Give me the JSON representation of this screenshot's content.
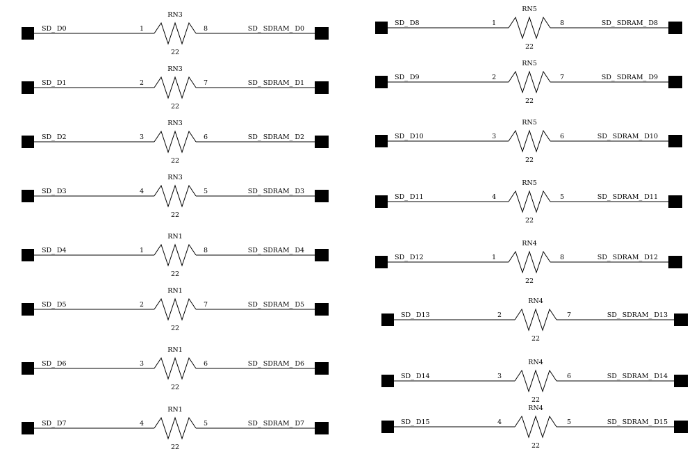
{
  "resistors": [
    {
      "ref": "RN3",
      "value": "22",
      "in_net": "SD_ D0",
      "out_net": "SD_ SDRAM_ D0",
      "pin_in": "1",
      "pin_out": "8"
    },
    {
      "ref": "RN3",
      "value": "22",
      "in_net": "SD_ D1",
      "out_net": "SD_ SDRAM_ D1",
      "pin_in": "2",
      "pin_out": "7"
    },
    {
      "ref": "RN3",
      "value": "22",
      "in_net": "SD_ D2",
      "out_net": "SD_ SDRAM_ D2",
      "pin_in": "3",
      "pin_out": "6"
    },
    {
      "ref": "RN3",
      "value": "22",
      "in_net": "SD_ D3",
      "out_net": "SD_ SDRAM_ D3",
      "pin_in": "4",
      "pin_out": "5"
    },
    {
      "ref": "RN1",
      "value": "22",
      "in_net": "SD_ D4",
      "out_net": "SD_ SDRAM_ D4",
      "pin_in": "1",
      "pin_out": "8"
    },
    {
      "ref": "RN1",
      "value": "22",
      "in_net": "SD_ D5",
      "out_net": "SD_ SDRAM_ D5",
      "pin_in": "2",
      "pin_out": "7"
    },
    {
      "ref": "RN1",
      "value": "22",
      "in_net": "SD_ D6",
      "out_net": "SD_ SDRAM_ D6",
      "pin_in": "3",
      "pin_out": "6"
    },
    {
      "ref": "RN1",
      "value": "22",
      "in_net": "SD_ D7",
      "out_net": "SD_ SDRAM_ D7",
      "pin_in": "4",
      "pin_out": "5"
    },
    {
      "ref": "RN5",
      "value": "22",
      "in_net": "SD_ D8",
      "out_net": "SD_ SDRAM_ D8",
      "pin_in": "1",
      "pin_out": "8"
    },
    {
      "ref": "RN5",
      "value": "22",
      "in_net": "SD_ D9",
      "out_net": "SD_ SDRAM_ D9",
      "pin_in": "2",
      "pin_out": "7"
    },
    {
      "ref": "RN5",
      "value": "22",
      "in_net": "SD_ D10",
      "out_net": "SD_ SDRAM_ D10",
      "pin_in": "3",
      "pin_out": "6"
    },
    {
      "ref": "RN5",
      "value": "22",
      "in_net": "SD_ D11",
      "out_net": "SD_ SDRAM_ D11",
      "pin_in": "4",
      "pin_out": "5"
    },
    {
      "ref": "RN4",
      "value": "22",
      "in_net": "SD_ D12",
      "out_net": "SD_ SDRAM_ D12",
      "pin_in": "1",
      "pin_out": "8"
    },
    {
      "ref": "RN4",
      "value": "22",
      "in_net": "SD_ D13",
      "out_net": "SD_ SDRAM_ D13",
      "pin_in": "2",
      "pin_out": "7"
    },
    {
      "ref": "RN4",
      "value": "22",
      "in_net": "SD_ D14",
      "out_net": "SD_ SDRAM_ D14",
      "pin_in": "3",
      "pin_out": "6"
    },
    {
      "ref": "RN4",
      "value": "22",
      "in_net": "SD_ D15",
      "out_net": "SD_ SDRAM_ D15",
      "pin_in": "4",
      "pin_out": "5"
    }
  ]
}
